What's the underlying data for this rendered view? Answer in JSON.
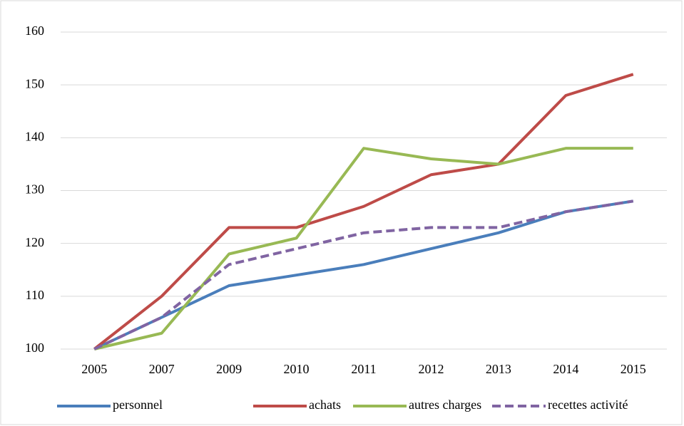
{
  "chart_data": {
    "type": "line",
    "categories": [
      "2005",
      "2007",
      "2009",
      "2010",
      "2011",
      "2012",
      "2013",
      "2014",
      "2015"
    ],
    "series": [
      {
        "name": "personnel",
        "color": "#4a7ebb",
        "values": [
          100,
          106,
          112,
          114,
          116,
          119,
          122,
          126,
          128
        ]
      },
      {
        "name": "achats",
        "color": "#be4b48",
        "values": [
          100,
          110,
          123,
          123,
          127,
          133,
          135,
          148,
          152
        ]
      },
      {
        "name": "autres charges",
        "color": "#98b954",
        "values": [
          100,
          103,
          118,
          121,
          138,
          136,
          135,
          138,
          138
        ]
      },
      {
        "name": "recettes activité",
        "color": "#8064a2",
        "dashed": true,
        "values": [
          100,
          106,
          116,
          119,
          122,
          123,
          123,
          126,
          128
        ]
      }
    ],
    "ylim": [
      100,
      160
    ],
    "yticks": [
      100,
      110,
      120,
      130,
      140,
      150,
      160
    ],
    "grid": true,
    "legend": "bottom"
  }
}
